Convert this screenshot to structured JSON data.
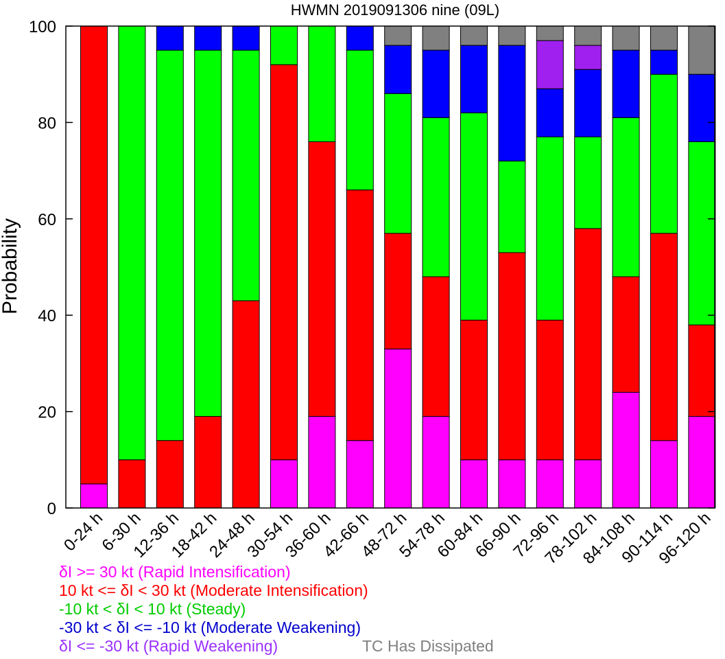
{
  "chart_data": {
    "type": "bar",
    "stacked": true,
    "title": "HWMN 2019091306 nine (09L)",
    "xlabel": "",
    "ylabel": "Probability",
    "ylim": [
      0,
      100
    ],
    "yticks": [
      0,
      20,
      40,
      60,
      80,
      100
    ],
    "grid": false,
    "categories": [
      "0-24 h",
      "6-30 h",
      "12-36 h",
      "18-42 h",
      "24-48 h",
      "30-54 h",
      "36-60 h",
      "42-66 h",
      "48-72 h",
      "54-78 h",
      "60-84 h",
      "66-90 h",
      "72-96 h",
      "78-102 h",
      "84-108 h",
      "90-114 h",
      "96-120 h"
    ],
    "series": [
      {
        "key": "ri",
        "color": "#ff00ff",
        "values": [
          5,
          0,
          0,
          0,
          0,
          10,
          19,
          14,
          33,
          19,
          10,
          10,
          10,
          10,
          24,
          14,
          19
        ]
      },
      {
        "key": "mi",
        "color": "#ff0000",
        "values": [
          95,
          10,
          14,
          19,
          43,
          82,
          57,
          52,
          24,
          29,
          29,
          43,
          29,
          48,
          24,
          43,
          19
        ]
      },
      {
        "key": "steady",
        "color": "#00ff00",
        "values": [
          0,
          90,
          81,
          76,
          52,
          8,
          24,
          29,
          29,
          33,
          43,
          19,
          38,
          19,
          33,
          33,
          38
        ]
      },
      {
        "key": "mw",
        "color": "#0000ff",
        "values": [
          0,
          0,
          5,
          5,
          5,
          0,
          0,
          5,
          10,
          14,
          14,
          24,
          10,
          14,
          14,
          5,
          14
        ]
      },
      {
        "key": "rw",
        "color": "#a020f0",
        "values": [
          0,
          0,
          0,
          0,
          0,
          0,
          0,
          0,
          0,
          0,
          0,
          0,
          10,
          5,
          0,
          0,
          0
        ]
      },
      {
        "key": "dissipated",
        "color": "#808080",
        "values": [
          0,
          0,
          0,
          0,
          0,
          0,
          0,
          0,
          4,
          5,
          4,
          4,
          3,
          4,
          5,
          5,
          10
        ]
      }
    ],
    "legend": {
      "placement": "bottom",
      "entries": [
        {
          "text": "δI >= 30 kt (Rapid Intensification)",
          "color": "#ff00ff"
        },
        {
          "text": "10 kt <= δI < 30 kt (Moderate Intensification)",
          "color": "#ff0000"
        },
        {
          "text": "-10 kt < δI < 10 kt (Steady)",
          "color": "#00cc00"
        },
        {
          "text": "-30 kt < δI <= -10 kt (Moderate Weakening)",
          "color": "#0000cc"
        },
        {
          "text": "δI <= -30 kt (Rapid Weakening)",
          "color": "#9b30ff"
        },
        {
          "text": "TC Has Dissipated",
          "color": "#808080"
        }
      ]
    }
  }
}
